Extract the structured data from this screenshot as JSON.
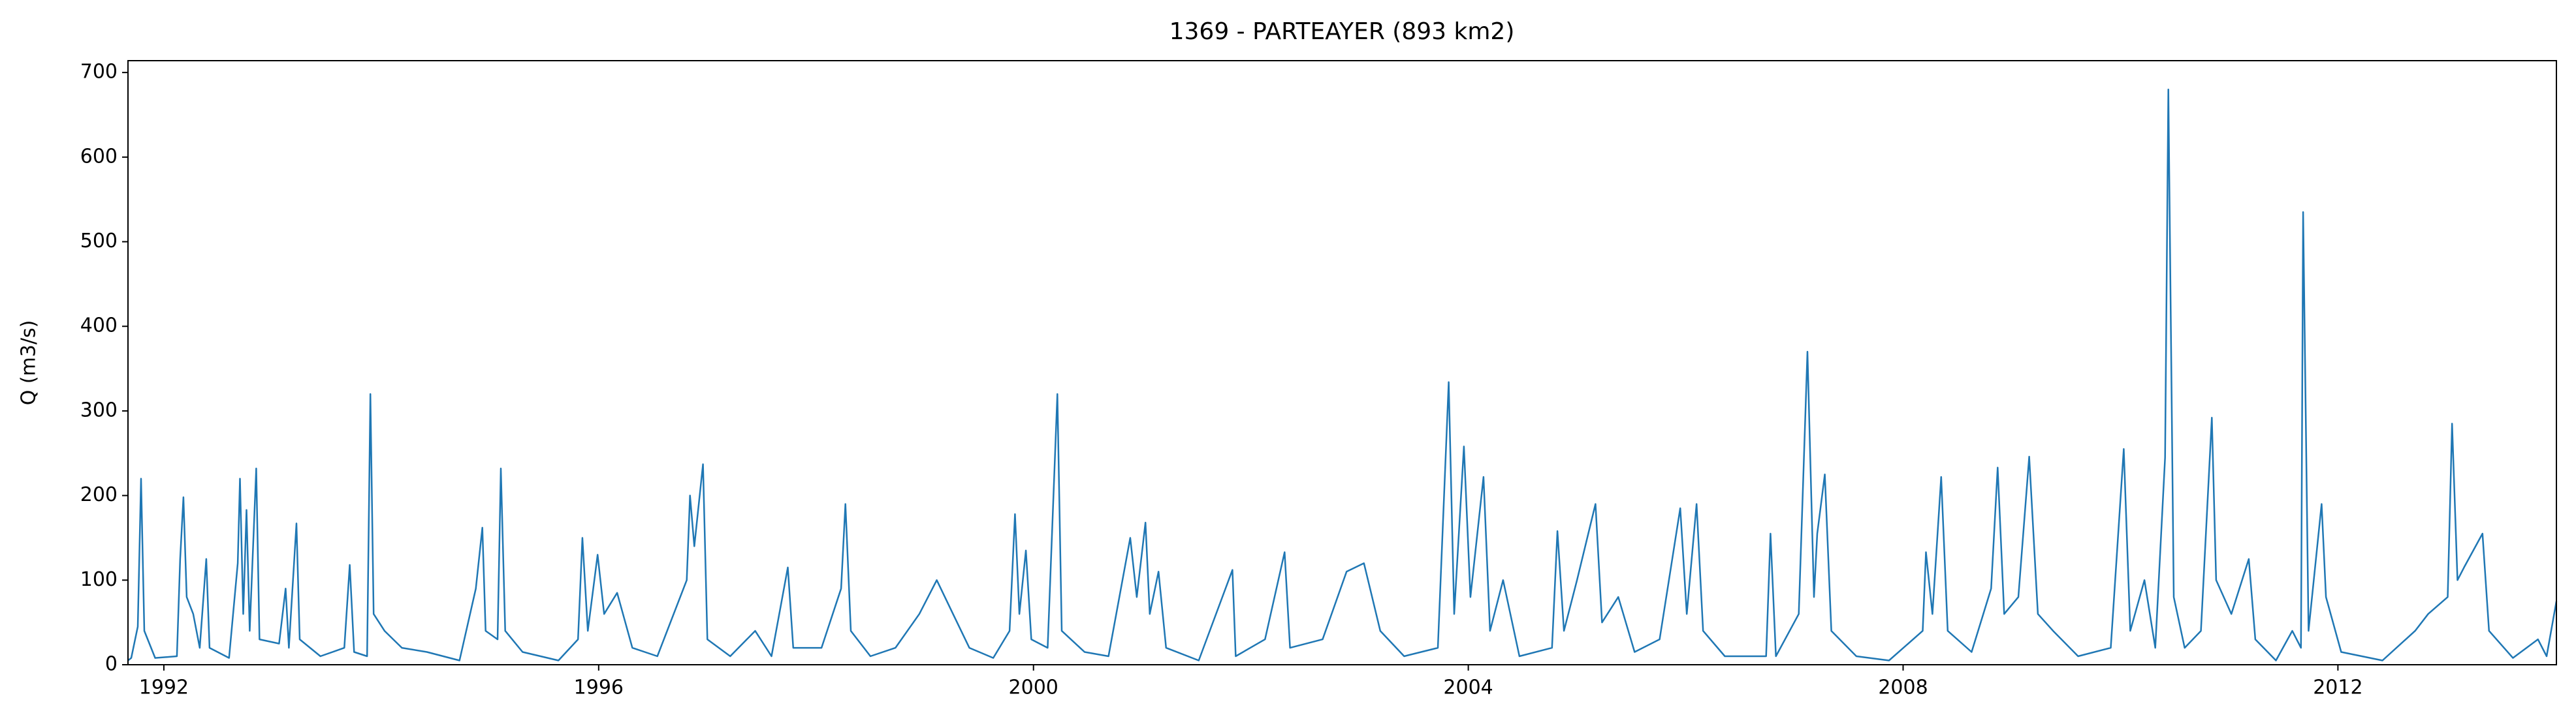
{
  "chart_data": {
    "type": "line",
    "title": "1369 - PARTEAYER (893 km2)",
    "y_label": "Q (m3/s)",
    "xlim": [
      1991.67,
      2014.01
    ],
    "xticks": [
      1992,
      1996,
      2000,
      2004,
      2008,
      2012
    ],
    "ylim": [
      0,
      714
    ],
    "yticks": [
      0,
      100,
      200,
      300,
      400,
      500,
      600,
      700
    ],
    "series": [
      {
        "color": "#1f77b4",
        "x": [
          1991.67,
          1991.7,
          1991.76,
          1991.79,
          1991.82,
          1991.92,
          1992.12,
          1992.15,
          1992.18,
          1992.21,
          1992.27,
          1992.33,
          1992.39,
          1992.42,
          1992.6,
          1992.68,
          1992.7,
          1992.73,
          1992.76,
          1992.79,
          1992.85,
          1992.88,
          1993.06,
          1993.12,
          1993.15,
          1993.22,
          1993.25,
          1993.44,
          1993.66,
          1993.71,
          1993.75,
          1993.87,
          1993.9,
          1993.93,
          1994.03,
          1994.19,
          1994.42,
          1994.72,
          1994.87,
          1994.93,
          1994.96,
          1995.07,
          1995.1,
          1995.14,
          1995.3,
          1995.63,
          1995.81,
          1995.85,
          1995.9,
          1995.99,
          1996.05,
          1996.17,
          1996.31,
          1996.54,
          1996.81,
          1996.84,
          1996.88,
          1996.96,
          1997.0,
          1997.21,
          1997.44,
          1997.59,
          1997.74,
          1997.79,
          1998.05,
          1998.23,
          1998.27,
          1998.32,
          1998.5,
          1998.73,
          1998.95,
          1999.11,
          1999.26,
          1999.41,
          1999.63,
          1999.78,
          1999.83,
          1999.87,
          1999.93,
          1999.98,
          2000.13,
          2000.22,
          2000.26,
          2000.47,
          2000.69,
          2000.89,
          2000.95,
          2001.03,
          2001.07,
          2001.15,
          2001.22,
          2001.52,
          2001.83,
          2001.86,
          2002.13,
          2002.31,
          2002.36,
          2002.66,
          2002.88,
          2003.04,
          2003.19,
          2003.41,
          2003.72,
          2003.82,
          2003.87,
          2003.96,
          2004.02,
          2004.14,
          2004.2,
          2004.32,
          2004.47,
          2004.77,
          2004.82,
          2004.88,
          2005.0,
          2005.17,
          2005.23,
          2005.38,
          2005.53,
          2005.76,
          2005.95,
          2006.01,
          2006.1,
          2006.16,
          2006.36,
          2006.74,
          2006.78,
          2006.83,
          2007.04,
          2007.12,
          2007.18,
          2007.21,
          2007.28,
          2007.34,
          2007.57,
          2007.87,
          2008.18,
          2008.21,
          2008.27,
          2008.35,
          2008.41,
          2008.63,
          2008.81,
          2008.87,
          2008.93,
          2009.06,
          2009.16,
          2009.24,
          2009.38,
          2009.61,
          2009.91,
          2010.03,
          2010.09,
          2010.22,
          2010.32,
          2010.41,
          2010.44,
          2010.49,
          2010.59,
          2010.74,
          2010.84,
          2010.88,
          2011.02,
          2011.18,
          2011.24,
          2011.43,
          2011.58,
          2011.66,
          2011.68,
          2011.73,
          2011.85,
          2011.89,
          2012.03,
          2012.41,
          2012.71,
          2012.83,
          2013.01,
          2013.05,
          2013.1,
          2013.16,
          2013.33,
          2013.39,
          2013.61,
          2013.84,
          2013.92,
          2014.01
        ],
        "values": [
          5,
          8,
          45,
          220,
          40,
          8,
          10,
          125,
          198,
          80,
          60,
          20,
          125,
          20,
          8,
          120,
          220,
          60,
          183,
          40,
          232,
          30,
          25,
          90,
          20,
          167,
          30,
          10,
          20,
          118,
          15,
          10,
          320,
          60,
          40,
          20,
          15,
          5,
          90,
          162,
          40,
          30,
          232,
          40,
          15,
          5,
          30,
          150,
          40,
          130,
          60,
          85,
          20,
          10,
          100,
          200,
          140,
          237,
          30,
          10,
          40,
          10,
          115,
          20,
          20,
          90,
          190,
          40,
          10,
          20,
          60,
          100,
          60,
          20,
          8,
          40,
          178,
          60,
          135,
          30,
          20,
          320,
          40,
          15,
          10,
          150,
          80,
          168,
          60,
          110,
          20,
          5,
          112,
          10,
          30,
          133,
          20,
          30,
          110,
          120,
          40,
          10,
          20,
          334,
          60,
          258,
          80,
          222,
          40,
          100,
          10,
          20,
          158,
          40,
          100,
          190,
          50,
          80,
          15,
          30,
          185,
          60,
          190,
          40,
          10,
          10,
          155,
          10,
          60,
          370,
          80,
          155,
          225,
          40,
          10,
          5,
          40,
          133,
          60,
          222,
          40,
          15,
          90,
          233,
          60,
          80,
          246,
          60,
          40,
          10,
          20,
          255,
          40,
          100,
          20,
          245,
          680,
          80,
          20,
          40,
          292,
          100,
          60,
          125,
          30,
          5,
          40,
          20,
          535,
          40,
          190,
          80,
          15,
          5,
          40,
          60,
          80,
          285,
          100,
          115,
          155,
          40,
          8,
          30,
          10,
          75
        ]
      }
    ]
  }
}
